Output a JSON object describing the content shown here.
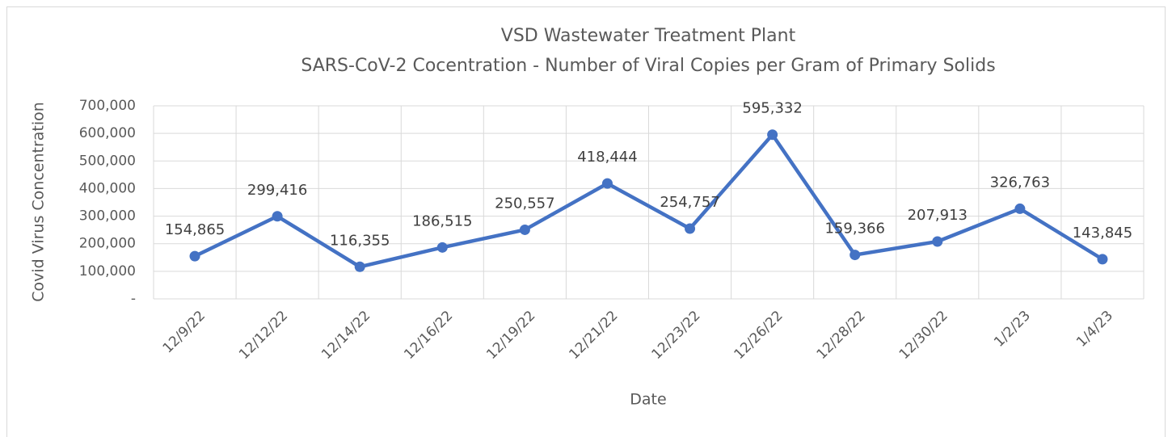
{
  "chart_data": {
    "type": "line",
    "title": "VSD Wastewater Treatment Plant",
    "subtitle": "SARS-CoV-2 Cocentration - Number of Viral Copies per Gram of Primary Solids",
    "x_label": "Date",
    "y_label": "Covid Virus Concentration",
    "categories": [
      "12/9/22",
      "12/12/22",
      "12/14/22",
      "12/16/22",
      "12/19/22",
      "12/21/22",
      "12/23/22",
      "12/26/22",
      "12/28/22",
      "12/30/22",
      "1/2/23",
      "1/4/23"
    ],
    "series": [
      {
        "name": "Covid Virus Concentration",
        "color": "#4472c4",
        "values": [
          154865,
          299416,
          116355,
          186515,
          250557,
          418444,
          254757,
          595332,
          159366,
          207913,
          326763,
          143845
        ],
        "value_labels": [
          "154,865",
          "299,416",
          "116,355",
          "186,515",
          "250,557",
          "418,444",
          "254,757",
          "595,332",
          "159,366",
          "207,913",
          "326,763",
          "143,845"
        ]
      }
    ],
    "ylim": [
      0,
      700000
    ],
    "yticks": [
      {
        "value": 0,
        "label": "-"
      },
      {
        "value": 100000,
        "label": "100,000"
      },
      {
        "value": 200000,
        "label": "200,000"
      },
      {
        "value": 300000,
        "label": "300,000"
      },
      {
        "value": 400000,
        "label": "400,000"
      },
      {
        "value": 500000,
        "label": "500,000"
      },
      {
        "value": 600000,
        "label": "600,000"
      },
      {
        "value": 700000,
        "label": "700,000"
      }
    ],
    "grid": true
  }
}
